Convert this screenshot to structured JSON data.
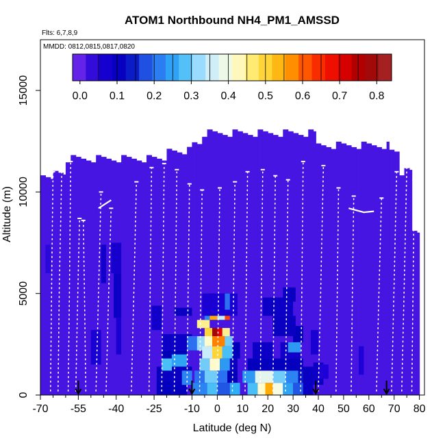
{
  "chart_data": {
    "type": "heatmap",
    "title": "ATOM1 Northbound NH4_PM1_AMSSD",
    "annotations": [
      "Flts: 6,7,8,9",
      "MMDD: 0812,0815,0817,0820"
    ],
    "xlabel": "Latitude (deg N)",
    "ylabel": "Altitude (m)",
    "xlim": [
      -70,
      82
    ],
    "ylim": [
      0,
      17500
    ],
    "x_ticks": [
      -70,
      -55,
      -40,
      -25,
      -10,
      0,
      10,
      20,
      30,
      40,
      50,
      60,
      70,
      80
    ],
    "x_tick_labels": [
      "-70",
      "-55",
      "-40",
      "-25",
      "-10",
      "0",
      "10",
      "20",
      "30",
      "40",
      "50",
      "60",
      "70",
      "80"
    ],
    "y_ticks": [
      0,
      5000,
      10000,
      15000
    ],
    "y_tick_labels": [
      "0",
      "5000",
      "10000",
      "15000"
    ],
    "colorbar": {
      "min": -0.02,
      "max": 0.84,
      "ticks": [
        0.0,
        0.1,
        0.2,
        0.3,
        0.4,
        0.5,
        0.6,
        0.7,
        0.8
      ],
      "tick_labels": [
        "0.0",
        "0.1",
        "0.2",
        "0.3",
        "0.4",
        "0.5",
        "0.6",
        "0.7",
        "0.8"
      ],
      "colors": [
        "#7a2fee",
        "#1c00d6",
        "#0000b8",
        "#2a6bf0",
        "#2fb4f5",
        "#bfe8ff",
        "#ffffe0",
        "#ffe34d",
        "#ffaa00",
        "#ff3b00",
        "#e80000",
        "#a00000",
        "#a62a2a"
      ]
    },
    "background_value": 0.02,
    "coverage": [
      {
        "x0": -70,
        "x1": -65,
        "top": 11000
      },
      {
        "x0": -65,
        "x1": -60,
        "top": 11400
      },
      {
        "x0": -60,
        "x1": -20,
        "top": 12000
      },
      {
        "x0": -20,
        "x1": -10,
        "top": 12400
      },
      {
        "x0": -10,
        "x1": 39,
        "top": 12900
      },
      {
        "x0": 39,
        "x1": 68,
        "top": 12300
      },
      {
        "x0": 68,
        "x1": 72,
        "top": 11900
      },
      {
        "x0": 72,
        "x1": 77,
        "top": 11000
      },
      {
        "x0": 77,
        "x1": 80,
        "top": 8000
      }
    ],
    "anomalies": [
      {
        "x0": -46,
        "x1": -44,
        "y0": 5500,
        "y1": 7400,
        "value": 0.08
      },
      {
        "x0": -42,
        "x1": -38,
        "y0": 6000,
        "y1": 7500,
        "value": 0.07
      },
      {
        "x0": -41,
        "x1": -38,
        "y0": 3800,
        "y1": 6000,
        "value": 0.09
      },
      {
        "x0": -40,
        "x1": -38,
        "y0": 2000,
        "y1": 3800,
        "value": 0.06
      },
      {
        "x0": -50,
        "x1": -46,
        "y0": 1500,
        "y1": 3200,
        "value": 0.06
      },
      {
        "x0": -26,
        "x1": -22,
        "y0": 3200,
        "y1": 4400,
        "value": 0.08
      },
      {
        "x0": -17,
        "x1": -10,
        "y0": 3900,
        "y1": 4300,
        "value": 0.1
      },
      {
        "x0": -22,
        "x1": -10,
        "y0": 2200,
        "y1": 3000,
        "value": 0.09
      },
      {
        "x0": -22,
        "x1": -12,
        "y0": 1400,
        "y1": 2200,
        "value": 0.12
      },
      {
        "x0": -24,
        "x1": -10,
        "y0": 700,
        "y1": 1400,
        "value": 0.1
      },
      {
        "x0": -24,
        "x1": -12,
        "y0": 0,
        "y1": 700,
        "value": 0.11
      },
      {
        "x0": -22,
        "x1": -18,
        "y0": 1200,
        "y1": 1800,
        "value": 0.28
      },
      {
        "x0": -18,
        "x1": -12,
        "y0": 1400,
        "y1": 2000,
        "value": 0.25
      },
      {
        "x0": -14,
        "x1": -10,
        "y0": 500,
        "y1": 1200,
        "value": 0.22
      },
      {
        "x0": -12,
        "x1": -7,
        "y0": 2200,
        "y1": 2900,
        "value": 0.2
      },
      {
        "x0": -8,
        "x1": -4,
        "y0": 2200,
        "y1": 2900,
        "value": 0.32
      },
      {
        "x0": -8,
        "x1": -3,
        "y0": 3300,
        "y1": 3700,
        "value": 0.45
      },
      {
        "x0": -5,
        "x1": -3,
        "y0": 3700,
        "y1": 4200,
        "value": 0.22
      },
      {
        "x0": -3,
        "x1": 0,
        "y0": 3700,
        "y1": 4200,
        "value": 0.55
      },
      {
        "x0": 0,
        "x1": 3,
        "y0": 3700,
        "y1": 4200,
        "value": 0.35
      },
      {
        "x0": 3,
        "x1": 5,
        "y0": 3700,
        "y1": 4200,
        "value": 0.62
      },
      {
        "x0": -3,
        "x1": 3,
        "y0": 4200,
        "y1": 4600,
        "value": 0.18
      },
      {
        "x0": -3,
        "x1": 5,
        "y0": 4600,
        "y1": 5000,
        "value": 0.09
      },
      {
        "x0": -5,
        "x1": -2,
        "y0": 2900,
        "y1": 3300,
        "value": 0.5
      },
      {
        "x0": -2,
        "x1": 0,
        "y0": 2900,
        "y1": 3300,
        "value": 0.78
      },
      {
        "x0": 0,
        "x1": 2,
        "y0": 2900,
        "y1": 3300,
        "value": 0.7
      },
      {
        "x0": 2,
        "x1": 5,
        "y0": 2900,
        "y1": 3300,
        "value": 0.45
      },
      {
        "x0": -5,
        "x1": -2,
        "y0": 2400,
        "y1": 2900,
        "value": 0.42
      },
      {
        "x0": -2,
        "x1": 3,
        "y0": 2400,
        "y1": 2900,
        "value": 0.58
      },
      {
        "x0": 3,
        "x1": 6,
        "y0": 2400,
        "y1": 2900,
        "value": 0.3
      },
      {
        "x0": -6,
        "x1": -2,
        "y0": 1800,
        "y1": 2400,
        "value": 0.35
      },
      {
        "x0": -2,
        "x1": 2,
        "y0": 1800,
        "y1": 2400,
        "value": 0.5
      },
      {
        "x0": 2,
        "x1": 6,
        "y0": 1800,
        "y1": 2400,
        "value": 0.28
      },
      {
        "x0": 6,
        "x1": 9,
        "y0": 1800,
        "y1": 2600,
        "value": 0.12
      },
      {
        "x0": -7,
        "x1": -3,
        "y0": 1200,
        "y1": 1800,
        "value": 0.3
      },
      {
        "x0": -3,
        "x1": 1,
        "y0": 1200,
        "y1": 1800,
        "value": 0.42
      },
      {
        "x0": 1,
        "x1": 5,
        "y0": 1200,
        "y1": 1800,
        "value": 0.24
      },
      {
        "x0": 5,
        "x1": 8,
        "y0": 1200,
        "y1": 1800,
        "value": 0.1
      },
      {
        "x0": -9,
        "x1": -5,
        "y0": 600,
        "y1": 1200,
        "value": 0.2
      },
      {
        "x0": -5,
        "x1": 0,
        "y0": 600,
        "y1": 1200,
        "value": 0.3
      },
      {
        "x0": 0,
        "x1": 4,
        "y0": 600,
        "y1": 1200,
        "value": 0.2
      },
      {
        "x0": 4,
        "x1": 8,
        "y0": 600,
        "y1": 1200,
        "value": 0.12
      },
      {
        "x0": -10,
        "x1": -4,
        "y0": 0,
        "y1": 600,
        "value": 0.22
      },
      {
        "x0": -4,
        "x1": 0,
        "y0": 0,
        "y1": 600,
        "value": 0.28
      },
      {
        "x0": 0,
        "x1": 5,
        "y0": 0,
        "y1": 600,
        "value": 0.18
      },
      {
        "x0": 5,
        "x1": 9,
        "y0": 0,
        "y1": 600,
        "value": 0.26
      },
      {
        "x0": -6,
        "x1": 8,
        "y0": 3900,
        "y1": 5000,
        "value": 0.06
      },
      {
        "x0": 3,
        "x1": 5,
        "y0": 4200,
        "y1": 5000,
        "value": 0.2
      },
      {
        "x0": 12,
        "x1": 16,
        "y0": 0,
        "y1": 600,
        "value": 0.28
      },
      {
        "x0": 16,
        "x1": 19,
        "y0": 0,
        "y1": 600,
        "value": 0.42
      },
      {
        "x0": 19,
        "x1": 22,
        "y0": 0,
        "y1": 600,
        "value": 0.55
      },
      {
        "x0": 22,
        "x1": 26,
        "y0": 0,
        "y1": 600,
        "value": 0.4
      },
      {
        "x0": 26,
        "x1": 30,
        "y0": 0,
        "y1": 600,
        "value": 0.25
      },
      {
        "x0": 30,
        "x1": 34,
        "y0": 0,
        "y1": 600,
        "value": 0.18
      },
      {
        "x0": 10,
        "x1": 15,
        "y0": 600,
        "y1": 1200,
        "value": 0.24
      },
      {
        "x0": 15,
        "x1": 22,
        "y0": 600,
        "y1": 1200,
        "value": 0.38
      },
      {
        "x0": 22,
        "x1": 27,
        "y0": 600,
        "y1": 1200,
        "value": 0.3
      },
      {
        "x0": 27,
        "x1": 32,
        "y0": 600,
        "y1": 1200,
        "value": 0.22
      },
      {
        "x0": 32,
        "x1": 36,
        "y0": 600,
        "y1": 1200,
        "value": 0.14
      },
      {
        "x0": 12,
        "x1": 34,
        "y0": 1200,
        "y1": 1800,
        "value": 0.11
      },
      {
        "x0": 14,
        "x1": 22,
        "y0": 1800,
        "y1": 2600,
        "value": 0.09
      },
      {
        "x0": 25,
        "x1": 33,
        "y0": 1800,
        "y1": 2600,
        "value": 0.08
      },
      {
        "x0": 30,
        "x1": 34,
        "y0": 2600,
        "y1": 3400,
        "value": 0.12
      },
      {
        "x0": 28,
        "x1": 33,
        "y0": 2100,
        "y1": 2600,
        "value": 0.24
      },
      {
        "x0": 22,
        "x1": 31,
        "y0": 2900,
        "y1": 3900,
        "value": 0.1
      },
      {
        "x0": 18,
        "x1": 30,
        "y0": 3900,
        "y1": 4800,
        "value": 0.09
      },
      {
        "x0": 26,
        "x1": 31,
        "y0": 4600,
        "y1": 5300,
        "value": 0.1
      },
      {
        "x0": 34,
        "x1": 38,
        "y0": 0,
        "y1": 1400,
        "value": 0.1
      },
      {
        "x0": 38,
        "x1": 42,
        "y0": 500,
        "y1": 1600,
        "value": 0.09
      },
      {
        "x0": 37,
        "x1": 40,
        "y0": 2000,
        "y1": 3200,
        "value": 0.06
      },
      {
        "x0": 40,
        "x1": 44,
        "y0": 800,
        "y1": 1500,
        "value": 0.05
      },
      {
        "x0": 56,
        "x1": 58,
        "y0": 1000,
        "y1": 2400,
        "value": 0.05
      },
      {
        "x0": -68,
        "x1": -66,
        "y0": 6000,
        "y1": 7400,
        "value": 0.04
      }
    ],
    "flight_tracks": [
      {
        "x": [
          -66,
          -65.5,
          -65
        ],
        "y": [
          200,
          6000,
          11000
        ]
      },
      {
        "x": [
          -63,
          -62.5,
          -61.5
        ],
        "y": [
          200,
          5500,
          11300
        ]
      },
      {
        "x": [
          -59,
          -58.5,
          -58
        ],
        "y": [
          200,
          5000,
          11500
        ]
      },
      {
        "x": [
          -56,
          -55.3,
          -54.5
        ],
        "y": [
          200,
          4500,
          8700
        ]
      },
      {
        "x": [
          -52,
          -52.5,
          -53
        ],
        "y": [
          200,
          4500,
          8600
        ]
      },
      {
        "x": [
          -48,
          -47,
          -46
        ],
        "y": [
          200,
          5000,
          10000
        ]
      },
      {
        "x": [
          -44,
          -43,
          -42
        ],
        "y": [
          200,
          5000,
          9200
        ]
      },
      {
        "x": [
          -34,
          -33,
          -32
        ],
        "y": [
          200,
          5200,
          10500
        ]
      },
      {
        "x": [
          -27,
          -26.5,
          -26
        ],
        "y": [
          200,
          5500,
          11200
        ]
      },
      {
        "x": [
          -22,
          -21.5,
          -21
        ],
        "y": [
          200,
          5500,
          11400
        ]
      },
      {
        "x": [
          -17,
          -16.5,
          -16
        ],
        "y": [
          200,
          5500,
          11100
        ]
      },
      {
        "x": [
          -12,
          -11.5,
          -11
        ],
        "y": [
          200,
          5500,
          10400
        ]
      },
      {
        "x": [
          -7,
          -6.5,
          -6
        ],
        "y": [
          200,
          5000,
          10100
        ]
      },
      {
        "x": [
          0,
          0.5,
          1
        ],
        "y": [
          200,
          5000,
          10200
        ]
      },
      {
        "x": [
          6,
          6.5,
          7
        ],
        "y": [
          200,
          5500,
          10500
        ]
      },
      {
        "x": [
          11,
          11.5,
          12
        ],
        "y": [
          200,
          5500,
          11000
        ]
      },
      {
        "x": [
          17,
          17.5,
          18
        ],
        "y": [
          200,
          5500,
          11100
        ]
      },
      {
        "x": [
          22,
          22.5,
          23
        ],
        "y": [
          200,
          5500,
          10800
        ]
      },
      {
        "x": [
          27,
          27.5,
          28
        ],
        "y": [
          200,
          5500,
          10600
        ]
      },
      {
        "x": [
          33,
          33.5,
          34
        ],
        "y": [
          200,
          5500,
          11500
        ]
      },
      {
        "x": [
          40,
          41,
          42
        ],
        "y": [
          200,
          5500,
          11300
        ]
      },
      {
        "x": [
          47,
          47.5,
          48
        ],
        "y": [
          200,
          5200,
          10200
        ]
      },
      {
        "x": [
          53,
          53.5,
          54
        ],
        "y": [
          200,
          5200,
          9800
        ]
      },
      {
        "x": [
          63,
          64,
          65
        ],
        "y": [
          200,
          5200,
          9700
        ]
      },
      {
        "x": [
          69,
          70,
          71
        ],
        "y": [
          200,
          5500,
          11000
        ]
      },
      {
        "x": [
          73,
          74,
          75
        ],
        "y": [
          200,
          5500,
          11200
        ]
      },
      {
        "x": [
          77,
          77.5,
          78
        ],
        "y": [
          200,
          5500,
          10600
        ]
      }
    ],
    "cruise_legs": [
      {
        "x": [
          -47,
          -42
        ],
        "y": [
          9200,
          9600
        ]
      },
      {
        "x": [
          52,
          58,
          62
        ],
        "y": [
          9200,
          9000,
          9050
        ]
      }
    ],
    "markers": [
      -55,
      -10,
      39,
      67
    ]
  }
}
